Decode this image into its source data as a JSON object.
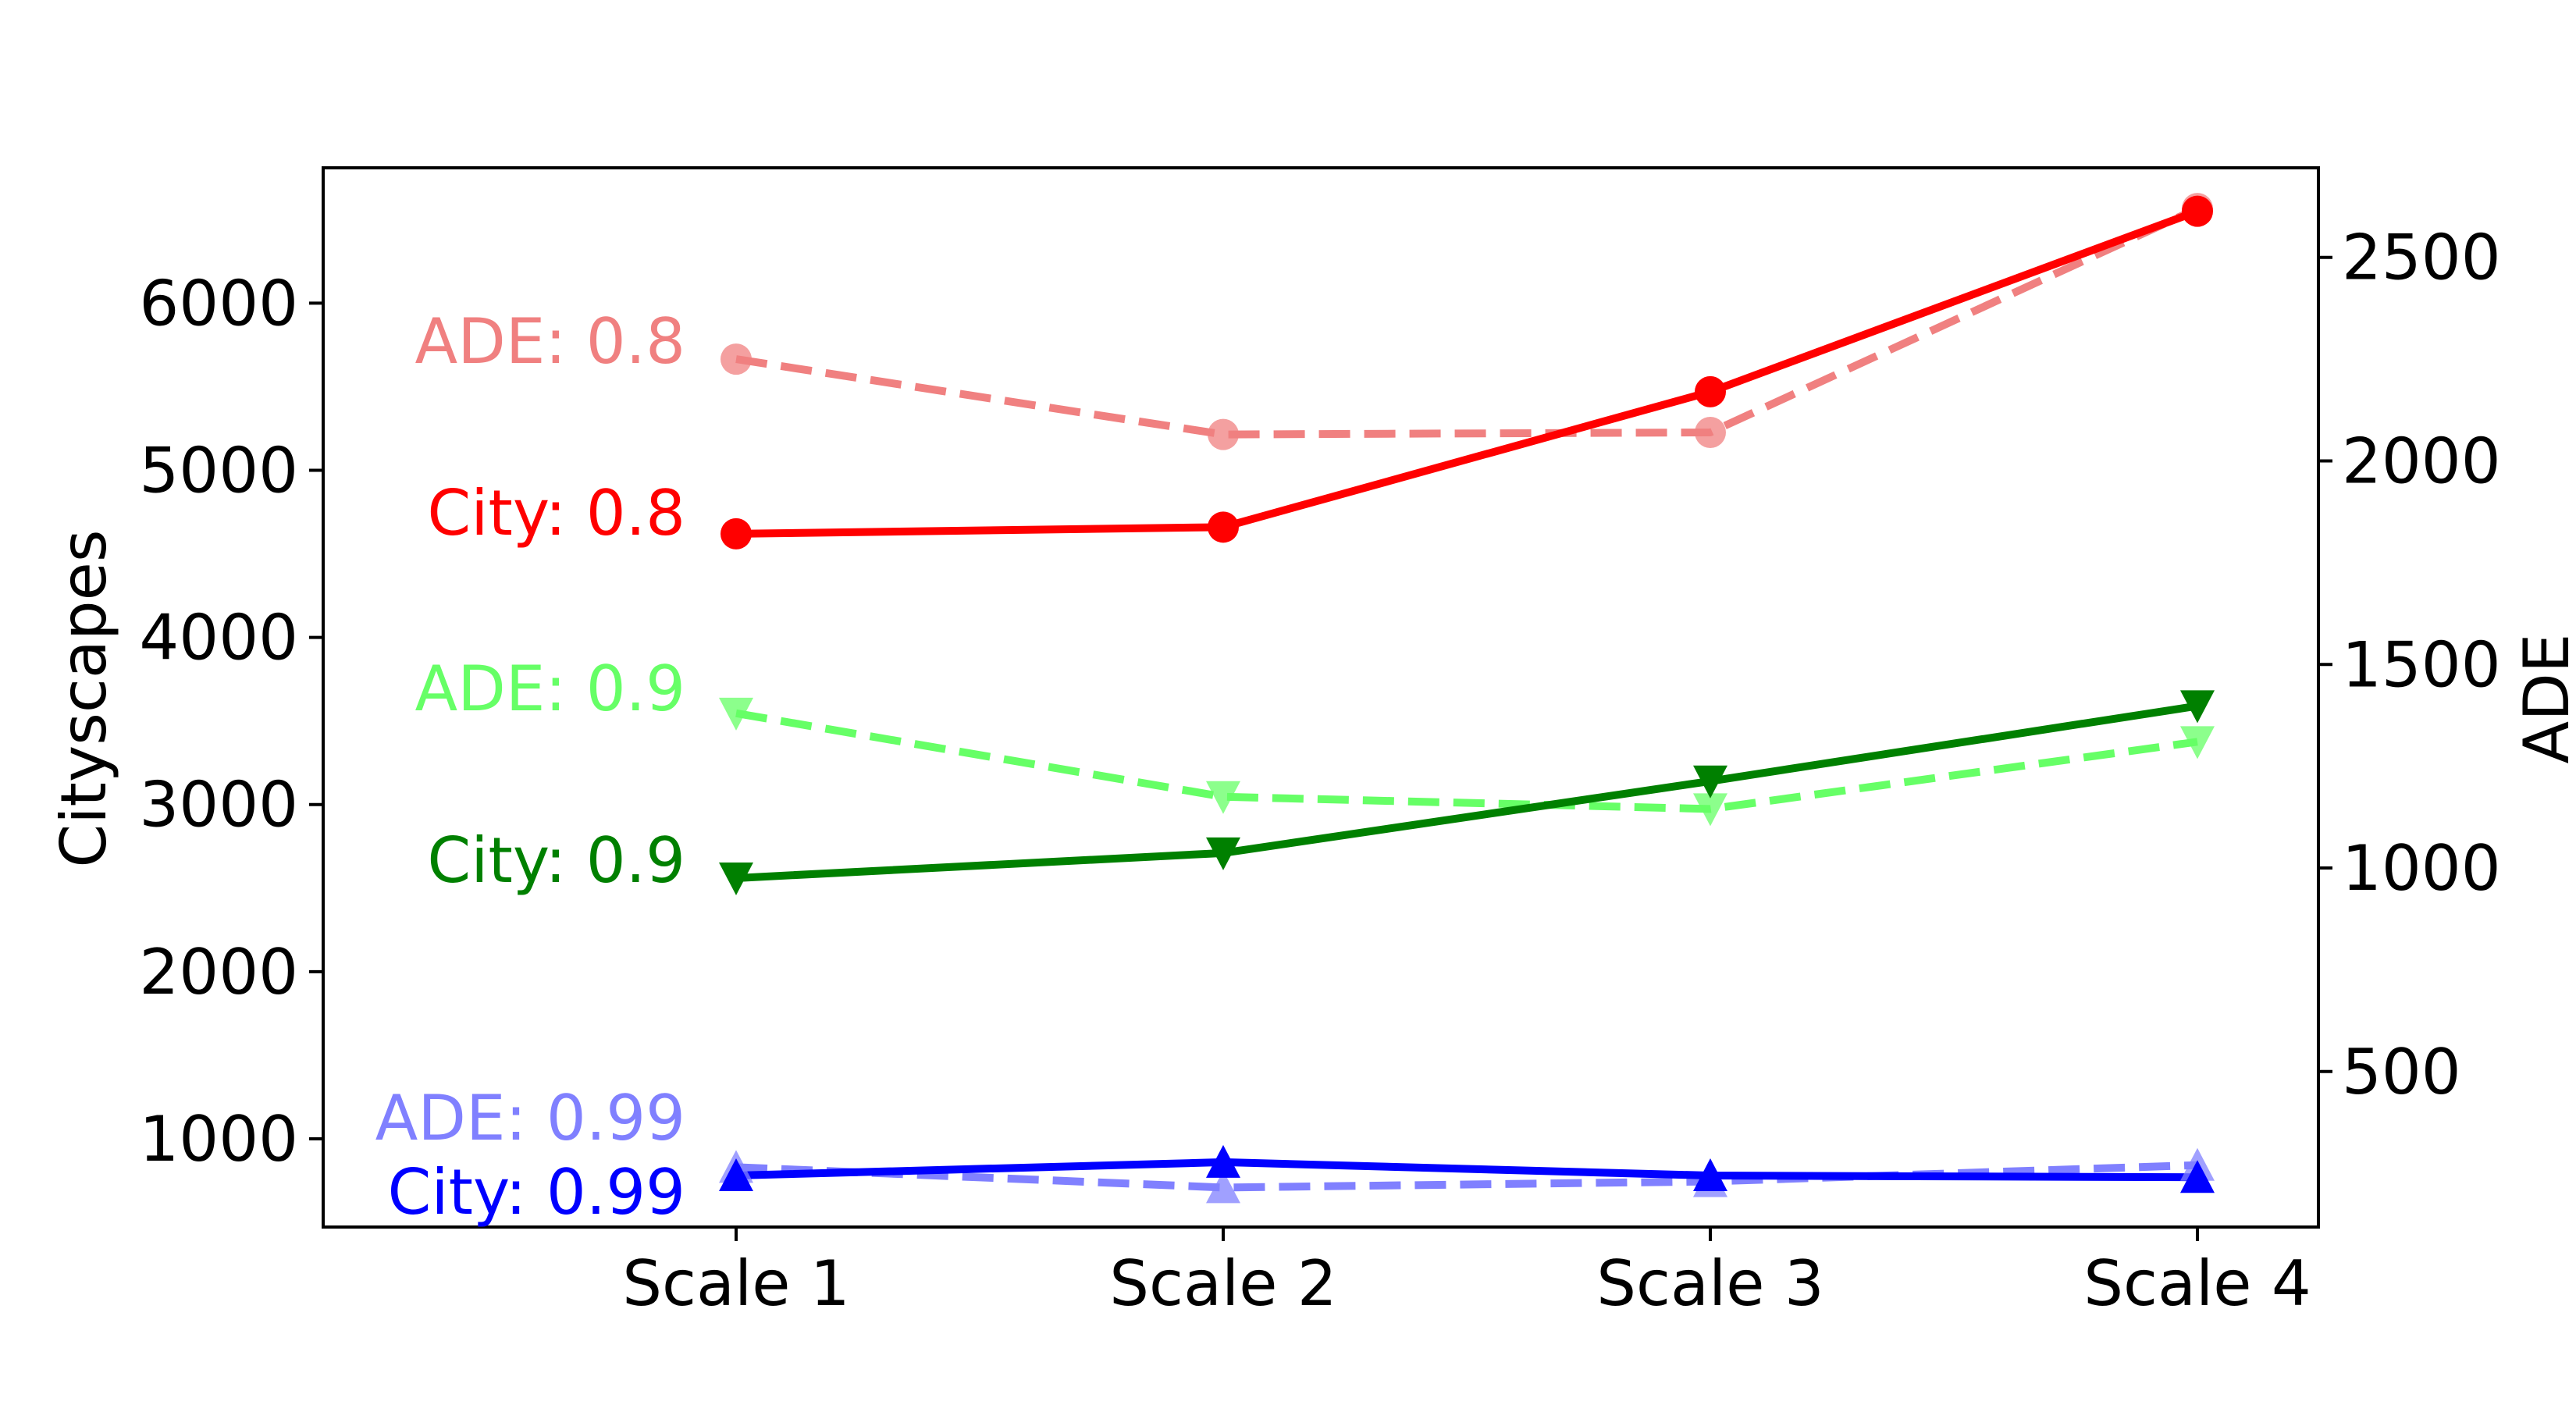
{
  "chart_data": {
    "type": "line",
    "categories": [
      "Scale 1",
      "Scale 2",
      "Scale 3",
      "Scale 4"
    ],
    "ylabel": "Cityscapes",
    "y2label": "ADE",
    "ylim": [
      472,
      6810
    ],
    "y2lim": [
      118,
      2720
    ],
    "yticks": [
      1000,
      2000,
      3000,
      4000,
      5000,
      6000
    ],
    "y2ticks": [
      500,
      1000,
      1500,
      2000,
      2500
    ],
    "grid": false,
    "series": [
      {
        "name": "ADE: 0.8",
        "axis": "right",
        "values": [
          2250,
          2065,
          2070,
          2620
        ],
        "color": "#f08080",
        "opacity": 1.0,
        "style": "dashed",
        "marker": "circle"
      },
      {
        "name": "City: 0.8",
        "axis": "left",
        "values": [
          4620,
          4660,
          5470,
          6550
        ],
        "color": "#ff0000",
        "opacity": 1.0,
        "style": "solid",
        "marker": "circle"
      },
      {
        "name": "ADE: 0.9",
        "axis": "right",
        "values": [
          1380,
          1175,
          1145,
          1310
        ],
        "color": "#66ff66",
        "opacity": 1.0,
        "style": "dashed",
        "marker": "triangle-down"
      },
      {
        "name": "City: 0.9",
        "axis": "left",
        "values": [
          2560,
          2710,
          3140,
          3590
        ],
        "color": "#008000",
        "opacity": 1.0,
        "style": "solid",
        "marker": "triangle-down"
      },
      {
        "name": "ADE: 0.99",
        "axis": "right",
        "values": [
          265,
          215,
          230,
          270
        ],
        "color": "#8080ff",
        "opacity": 1.0,
        "style": "dashed",
        "marker": "triangle-up"
      },
      {
        "name": "City: 0.99",
        "axis": "left",
        "values": [
          780,
          860,
          780,
          770
        ],
        "color": "#0000ff",
        "opacity": 1.0,
        "style": "solid",
        "marker": "triangle-up"
      }
    ]
  }
}
